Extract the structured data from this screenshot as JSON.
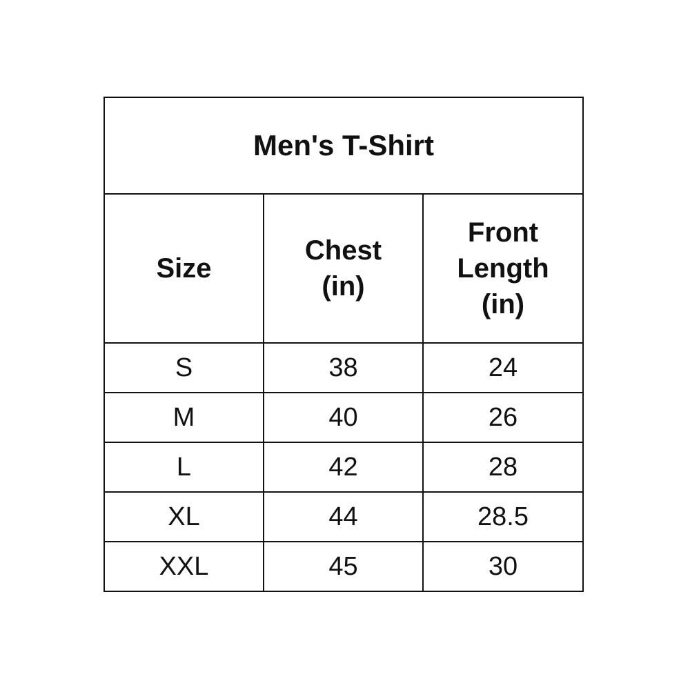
{
  "table": {
    "title": "Men's T-Shirt",
    "headers": [
      {
        "lines": [
          "Size"
        ]
      },
      {
        "lines": [
          "Chest",
          "(in)"
        ]
      },
      {
        "lines": [
          "Front",
          "Length",
          "(in)"
        ]
      }
    ],
    "rows": [
      [
        "S",
        "38",
        "24"
      ],
      [
        "M",
        "40",
        "26"
      ],
      [
        "L",
        "42",
        "28"
      ],
      [
        "XL",
        "44",
        "28.5"
      ],
      [
        "XXL",
        "45",
        "30"
      ]
    ]
  }
}
